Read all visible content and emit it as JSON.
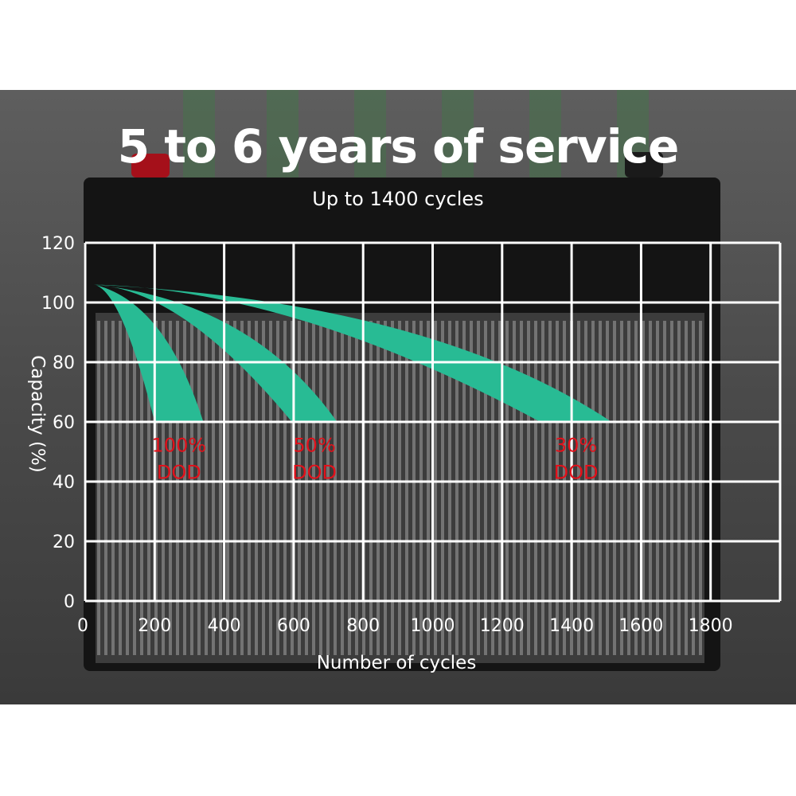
{
  "header": {
    "title": "5 to 6 years of service",
    "subtitle": "Up to 1400 cycles"
  },
  "colors": {
    "band": "#28bb94",
    "grid": "#ffffff",
    "annotation": "#e3101a",
    "background": "#4a4a4a"
  },
  "chart_data": {
    "type": "area",
    "xlabel": "Number of cycles",
    "ylabel": "Capacity (%)",
    "xlim": [
      0,
      2000
    ],
    "ylim": [
      0,
      120
    ],
    "xticks": [
      0,
      200,
      400,
      600,
      800,
      1000,
      1200,
      1400,
      1600,
      1800
    ],
    "yticks": [
      0,
      20,
      40,
      60,
      80,
      100,
      120
    ],
    "grid": true,
    "series": [
      {
        "name": "100% DOD",
        "line1": "100%",
        "line2": "DOD",
        "start": [
          25,
          106
        ],
        "end_range": [
          200,
          340
        ],
        "end_capacity": 60
      },
      {
        "name": "50% DOD",
        "line1": "50%",
        "line2": "DOD",
        "start": [
          25,
          106
        ],
        "end_range": [
          595,
          725
        ],
        "end_capacity": 60
      },
      {
        "name": "30% DOD",
        "line1": "30%",
        "line2": "DOD",
        "start": [
          25,
          106
        ],
        "end_range": [
          1310,
          1515
        ],
        "end_capacity": 60
      }
    ]
  }
}
